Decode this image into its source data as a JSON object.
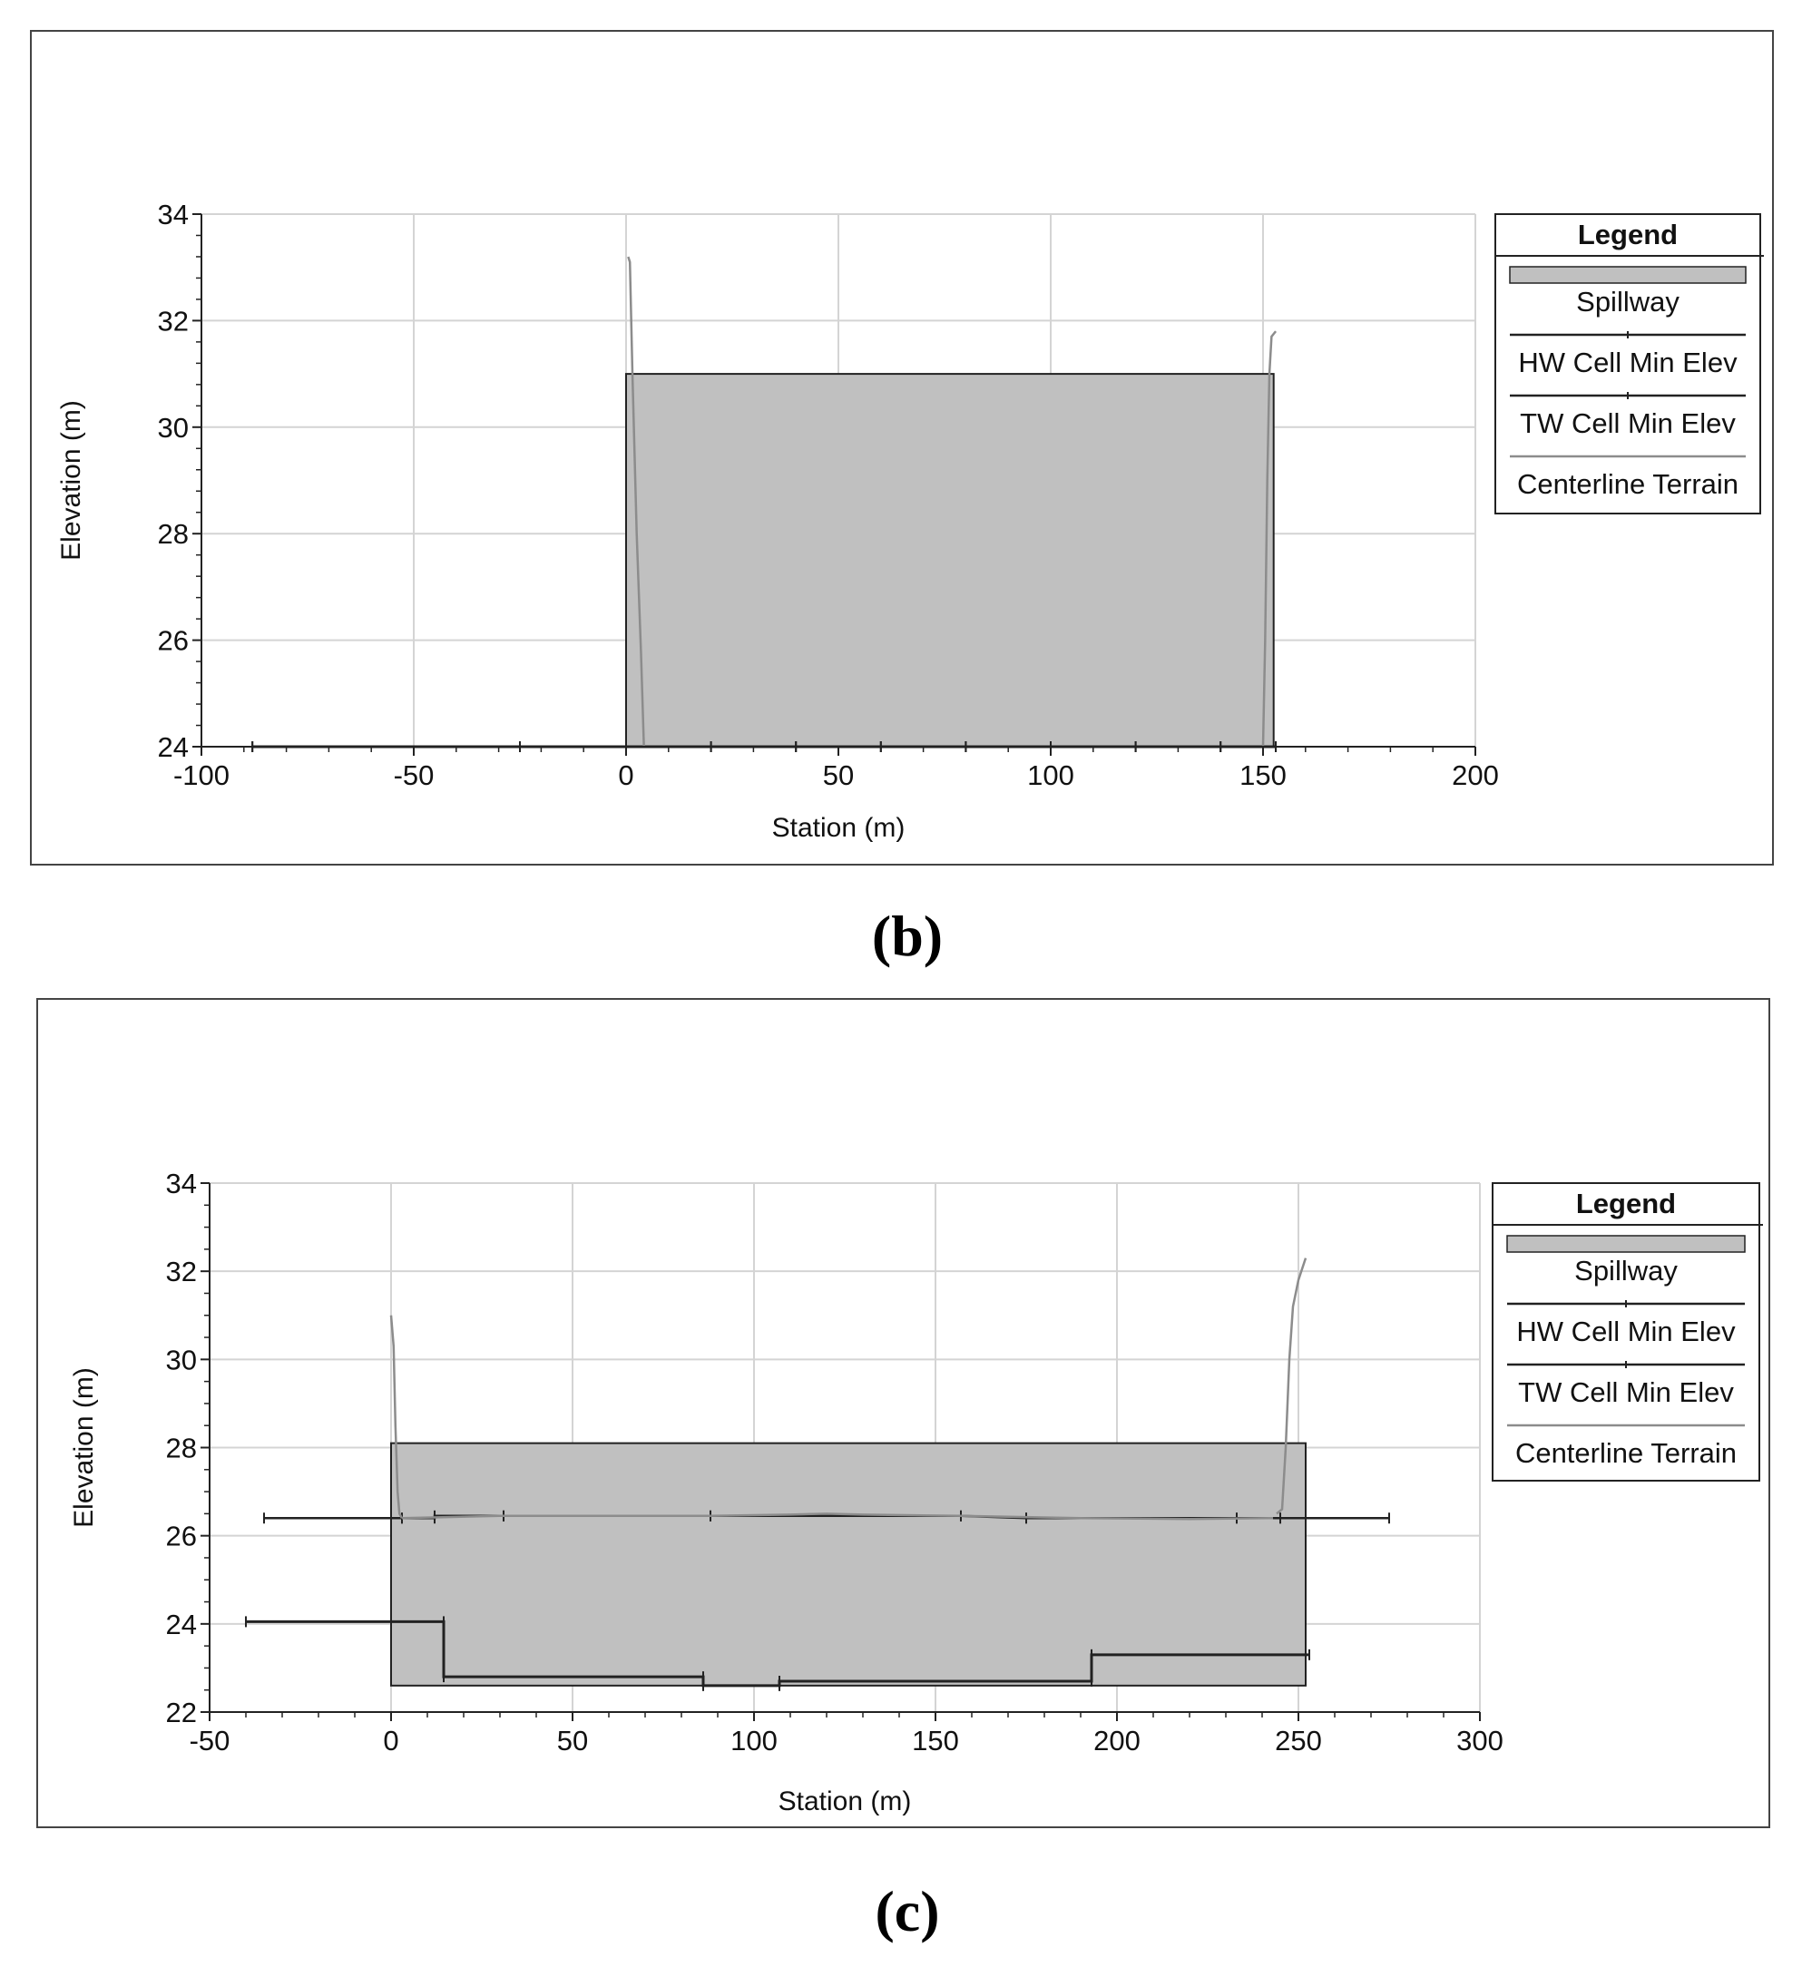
{
  "captions": {
    "b": "(b)",
    "c": "(c)"
  },
  "colors": {
    "spillway_fill": "#c0c0c0",
    "terrain": "#8c8c8c",
    "grid": "#d4d4d4",
    "cell_line": "#222222"
  },
  "chart_data": [
    {
      "type": "area",
      "xlabel": "Station (m)",
      "ylabel": "Elevation (m)",
      "xlim": [
        -100,
        200
      ],
      "ylim": [
        24,
        34
      ],
      "xticks": [
        -100,
        -50,
        0,
        50,
        100,
        150,
        200
      ],
      "yticks": [
        24,
        26,
        28,
        30,
        32,
        34
      ],
      "grid": true,
      "legend": {
        "title": "Legend",
        "entries": [
          "Spillway",
          "HW Cell Min Elev",
          "TW Cell Min Elev",
          "Centerline Terrain"
        ],
        "placement": "right"
      },
      "spillway": {
        "x0": 0,
        "x1": 152.5,
        "bottom": 24,
        "top": 31
      },
      "series": [
        {
          "name": "HW Cell Min Elev",
          "x": [
            -88,
            -25,
            0,
            20,
            40,
            60,
            80,
            100,
            120,
            140,
            153
          ],
          "y": [
            24,
            24,
            24,
            24,
            24,
            24,
            24,
            24,
            24,
            24,
            24
          ]
        },
        {
          "name": "TW Cell Min Elev",
          "x": [
            -88,
            -25,
            0,
            20,
            40,
            60,
            80,
            100,
            120,
            140,
            153
          ],
          "y": [
            24,
            24,
            24,
            24,
            24,
            24,
            24,
            24,
            24,
            24,
            24
          ]
        },
        {
          "name": "Centerline Terrain",
          "x": [
            0.5,
            0.9,
            1.5,
            2.5,
            3.5,
            4.2
          ],
          "y": [
            33.2,
            33.1,
            31.0,
            28.0,
            25.8,
            24.0
          ]
        },
        {
          "name": "Centerline Terrain",
          "x": [
            150.0,
            150.5,
            151.0,
            151.5,
            152.0,
            153.0
          ],
          "y": [
            24.0,
            26.0,
            29.0,
            31.0,
            31.7,
            31.8
          ]
        }
      ]
    },
    {
      "type": "area",
      "xlabel": "Station (m)",
      "ylabel": "Elevation (m)",
      "xlim": [
        -50,
        300
      ],
      "ylim": [
        22,
        34
      ],
      "xticks": [
        -50,
        0,
        50,
        100,
        150,
        200,
        250,
        300
      ],
      "yticks": [
        22,
        24,
        26,
        28,
        30,
        32,
        34
      ],
      "grid": true,
      "legend": {
        "title": "Legend",
        "entries": [
          "Spillway",
          "HW Cell Min Elev",
          "TW Cell Min Elev",
          "Centerline Terrain"
        ],
        "placement": "right"
      },
      "spillway": {
        "x0": 0,
        "x1": 252,
        "bottom": 22.6,
        "top": 28.1
      },
      "series": [
        {
          "name": "HW Cell Min Elev",
          "x": [
            -35,
            3,
            3,
            12,
            12,
            31,
            31,
            88,
            88,
            157,
            157,
            175,
            175,
            233,
            233,
            245,
            245,
            275
          ],
          "y": [
            26.4,
            26.4,
            26.4,
            26.4,
            26.45,
            26.45,
            26.45,
            26.45,
            26.45,
            26.45,
            26.45,
            26.4,
            26.4,
            26.4,
            26.4,
            26.4,
            26.4,
            26.4
          ]
        },
        {
          "name": "TW Cell Min Elev",
          "x": [
            -40,
            14.5,
            14.5,
            86,
            86,
            107,
            107,
            193,
            193,
            253
          ],
          "y": [
            24.05,
            24.05,
            22.8,
            22.8,
            22.6,
            22.6,
            22.7,
            22.7,
            23.3,
            23.3
          ]
        },
        {
          "name": "Centerline Terrain",
          "x": [
            0,
            0.7,
            1.2,
            1.8,
            2.3,
            3.0
          ],
          "y": [
            31.0,
            30.3,
            28.5,
            27.0,
            26.5,
            26.4
          ]
        },
        {
          "name": "Centerline Terrain",
          "x": [
            3,
            30,
            60,
            88,
            110,
            120,
            130,
            157,
            190,
            220,
            243
          ],
          "y": [
            26.4,
            26.45,
            26.45,
            26.45,
            26.48,
            26.5,
            26.48,
            26.45,
            26.4,
            26.38,
            26.4
          ]
        },
        {
          "name": "Centerline Terrain",
          "x": [
            244,
            245.5,
            246.5,
            247.5,
            248.5,
            250,
            252
          ],
          "y": [
            26.5,
            26.6,
            28.0,
            30.0,
            31.2,
            31.8,
            32.3
          ]
        }
      ]
    }
  ]
}
